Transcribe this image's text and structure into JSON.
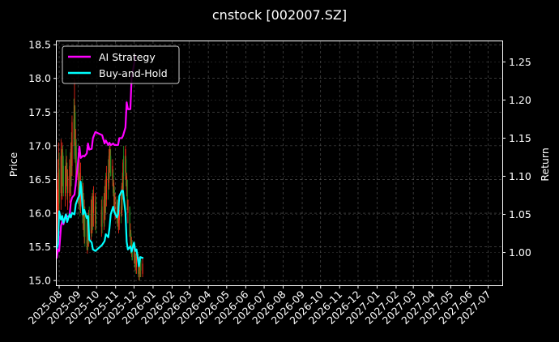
{
  "chart_data": {
    "type": "line",
    "title": "cnstock [002007.SZ]",
    "xlabel": "",
    "ylabel": "Price",
    "y2label": "Return",
    "ylim": [
      14.93,
      18.55
    ],
    "y2lim": [
      0.957,
      1.277
    ],
    "xlim": [
      "2025-07-28",
      "2027-07-24"
    ],
    "yticks": [
      15.0,
      15.5,
      16.0,
      16.5,
      17.0,
      17.5,
      18.0,
      18.5
    ],
    "ytick_labels": [
      "15.0",
      "15.5",
      "16.0",
      "16.5",
      "17.0",
      "17.5",
      "18.0",
      "18.5"
    ],
    "y2ticks": [
      1.0,
      1.05,
      1.1,
      1.15,
      1.2,
      1.25
    ],
    "y2tick_labels": [
      "1.00",
      "1.05",
      "1.10",
      "1.15",
      "1.20",
      "1.25"
    ],
    "xtick_dates": [
      "2025-08-01",
      "2025-09-01",
      "2025-10-01",
      "2025-11-01",
      "2025-12-01",
      "2026-01-01",
      "2026-02-01",
      "2026-03-01",
      "2026-04-01",
      "2026-05-01",
      "2026-06-01",
      "2026-07-01",
      "2026-08-01",
      "2026-09-01",
      "2026-10-01",
      "2026-11-01",
      "2026-12-01",
      "2027-01-01",
      "2027-02-01",
      "2027-03-01",
      "2027-04-01",
      "2027-05-01",
      "2027-06-01",
      "2027-07-01"
    ],
    "xtick_labels": [
      "2025-08",
      "2025-09",
      "2025-10",
      "2025-11",
      "2025-12",
      "2026-01",
      "2026-02",
      "2026-03",
      "2026-04",
      "2026-05",
      "2026-06",
      "2026-07",
      "2026-08",
      "2026-09",
      "2026-10",
      "2026-11",
      "2026-12",
      "2027-01",
      "2027-02",
      "2027-03",
      "2027-04",
      "2027-05",
      "2027-06",
      "2027-07"
    ],
    "grid": true,
    "legend_position": "top-left",
    "candles": {
      "up_color": "#ff2a1a",
      "down_color": "#1f8f1f",
      "x": [
        "2025-07-28",
        "2025-07-29",
        "2025-07-30",
        "2025-07-31",
        "2025-08-01",
        "2025-08-04",
        "2025-08-05",
        "2025-08-06",
        "2025-08-07",
        "2025-08-08",
        "2025-08-11",
        "2025-08-12",
        "2025-08-13",
        "2025-08-14",
        "2025-08-15",
        "2025-08-18",
        "2025-08-19",
        "2025-08-20",
        "2025-08-21",
        "2025-08-22",
        "2025-08-25",
        "2025-08-26",
        "2025-08-27",
        "2025-08-28",
        "2025-08-29",
        "2025-09-01",
        "2025-09-02",
        "2025-09-03",
        "2025-09-04",
        "2025-09-05",
        "2025-09-08",
        "2025-09-09",
        "2025-09-10",
        "2025-09-11",
        "2025-09-12",
        "2025-09-15",
        "2025-09-16",
        "2025-09-17",
        "2025-09-18",
        "2025-09-19",
        "2025-09-22",
        "2025-09-23",
        "2025-09-24",
        "2025-09-25",
        "2025-09-26",
        "2025-09-29",
        "2025-09-30",
        "2025-10-09",
        "2025-10-10",
        "2025-10-13",
        "2025-10-14",
        "2025-10-15",
        "2025-10-16",
        "2025-10-17",
        "2025-10-20",
        "2025-10-21",
        "2025-10-22",
        "2025-10-23",
        "2025-10-24",
        "2025-10-27",
        "2025-10-28",
        "2025-10-29",
        "2025-10-30",
        "2025-10-31",
        "2025-11-03",
        "2025-11-04",
        "2025-11-05",
        "2025-11-06",
        "2025-11-07",
        "2025-11-10",
        "2025-11-11",
        "2025-11-12",
        "2025-11-13",
        "2025-11-14",
        "2025-11-17",
        "2025-11-18",
        "2025-11-19",
        "2025-11-20",
        "2025-11-21",
        "2025-11-24",
        "2025-11-25",
        "2025-11-26",
        "2025-11-27",
        "2025-11-28",
        "2025-12-01",
        "2025-12-02",
        "2025-12-03",
        "2025-12-04",
        "2025-12-05",
        "2025-12-08",
        "2025-12-09",
        "2025-12-10",
        "2025-12-11",
        "2025-12-12",
        "2025-12-15"
      ],
      "low": [
        15.35,
        15.5,
        15.7,
        15.85,
        15.8,
        16.05,
        16.25,
        16.2,
        16.4,
        16.25,
        16.1,
        16.3,
        16.4,
        16.2,
        16.05,
        16.15,
        16.3,
        16.25,
        16.4,
        16.55,
        16.8,
        17.0,
        16.75,
        16.5,
        16.4,
        16.15,
        16.1,
        16.05,
        15.95,
        16.0,
        15.85,
        15.75,
        15.65,
        15.55,
        15.5,
        15.45,
        15.4,
        15.45,
        15.5,
        15.55,
        15.6,
        15.65,
        15.7,
        15.75,
        15.8,
        15.75,
        15.7,
        15.65,
        15.7,
        15.75,
        15.8,
        15.9,
        16.0,
        16.1,
        16.2,
        16.35,
        16.5,
        16.6,
        16.55,
        16.4,
        16.25,
        16.1,
        16.0,
        15.9,
        15.85,
        15.8,
        15.75,
        15.7,
        15.75,
        15.85,
        15.95,
        16.05,
        16.2,
        16.35,
        16.5,
        16.4,
        16.25,
        16.05,
        15.85,
        15.65,
        15.5,
        15.4,
        15.35,
        15.3,
        15.25,
        15.2,
        15.15,
        15.1,
        15.1,
        15.05,
        15.0,
        15.0,
        15.05,
        15.05,
        15.05
      ],
      "high": [
        16.35,
        16.5,
        16.8,
        17.05,
        16.9,
        17.1,
        16.95,
        17.05,
        17.0,
        16.85,
        16.7,
        16.95,
        16.85,
        16.75,
        16.65,
        16.8,
        16.9,
        17.05,
        17.2,
        17.45,
        17.7,
        18.0,
        17.6,
        17.25,
        17.1,
        16.9,
        16.85,
        16.8,
        16.6,
        16.75,
        16.55,
        16.45,
        16.3,
        16.2,
        16.1,
        15.95,
        15.9,
        16.0,
        16.05,
        16.1,
        16.2,
        16.25,
        16.3,
        16.35,
        16.4,
        16.3,
        16.25,
        16.2,
        16.25,
        16.3,
        16.4,
        16.5,
        16.6,
        16.7,
        16.8,
        16.95,
        17.05,
        17.0,
        16.95,
        16.8,
        16.65,
        16.5,
        16.4,
        16.3,
        16.25,
        16.2,
        16.15,
        16.1,
        16.15,
        16.3,
        16.45,
        16.6,
        16.8,
        17.0,
        17.0,
        16.85,
        16.6,
        16.4,
        16.2,
        16.0,
        15.85,
        15.75,
        15.65,
        15.6,
        15.55,
        15.5,
        15.45,
        15.4,
        15.45,
        15.4,
        15.35,
        15.3,
        15.35,
        15.35,
        15.35
      ],
      "open": [
        15.45,
        15.6,
        16.0,
        16.1,
        16.65,
        16.3,
        16.8,
        16.4,
        16.9,
        16.7,
        16.25,
        16.8,
        16.55,
        16.6,
        16.3,
        16.25,
        16.75,
        16.4,
        17.0,
        16.7,
        17.4,
        17.1,
        17.5,
        16.8,
        17.0,
        16.5,
        16.7,
        16.2,
        16.5,
        16.1,
        16.4,
        15.95,
        16.2,
        15.7,
        16.0,
        15.6,
        15.5,
        15.9,
        15.6,
        15.95,
        15.7,
        16.1,
        15.8,
        16.2,
        16.0,
        15.85,
        16.15,
        15.8,
        16.1,
        15.85,
        16.25,
        16.0,
        16.45,
        16.2,
        16.6,
        16.45,
        16.9,
        16.7,
        16.85,
        16.5,
        16.6,
        16.25,
        16.35,
        16.0,
        16.2,
        15.9,
        16.05,
        15.85,
        15.9,
        16.1,
        16.0,
        16.45,
        16.3,
        16.85,
        16.6,
        16.8,
        16.35,
        16.5,
        16.0,
        16.1,
        15.6,
        15.7,
        15.45,
        15.55,
        15.35,
        15.45,
        15.25,
        15.35,
        15.2,
        15.3,
        15.1,
        15.25,
        15.15,
        15.3,
        15.1
      ],
      "close": [
        15.9,
        16.05,
        16.6,
        16.55,
        16.15,
        16.85,
        16.35,
        16.95,
        16.45,
        16.3,
        16.7,
        16.45,
        16.75,
        16.35,
        16.55,
        16.7,
        16.3,
        16.95,
        16.6,
        17.35,
        17.0,
        17.6,
        16.85,
        17.05,
        16.5,
        16.8,
        16.25,
        16.55,
        16.05,
        16.45,
        15.95,
        16.25,
        15.75,
        16.05,
        15.65,
        15.55,
        15.85,
        15.55,
        15.9,
        15.65,
        16.05,
        15.75,
        16.2,
        15.95,
        16.25,
        16.1,
        15.8,
        16.05,
        15.8,
        16.2,
        15.95,
        16.4,
        16.15,
        16.55,
        16.4,
        16.85,
        16.65,
        16.95,
        16.55,
        16.7,
        16.3,
        16.45,
        16.05,
        16.25,
        15.95,
        16.1,
        15.8,
        16.0,
        16.05,
        15.95,
        16.4,
        16.25,
        16.75,
        16.55,
        16.95,
        16.4,
        16.55,
        16.05,
        16.2,
        15.65,
        15.75,
        15.4,
        15.5,
        15.3,
        15.5,
        15.25,
        15.4,
        15.2,
        15.35,
        15.1,
        15.25,
        15.1,
        15.3,
        15.15,
        15.25
      ]
    },
    "series": [
      {
        "name": "AI Strategy",
        "color": "#ff00ff",
        "x": [
          "2025-07-28",
          "2025-07-30",
          "2025-08-01",
          "2025-08-04",
          "2025-08-06",
          "2025-08-08",
          "2025-08-12",
          "2025-08-14",
          "2025-08-18",
          "2025-08-20",
          "2025-08-22",
          "2025-08-26",
          "2025-08-28",
          "2025-09-01",
          "2025-09-03",
          "2025-09-05",
          "2025-09-09",
          "2025-09-11",
          "2025-09-15",
          "2025-09-17",
          "2025-09-19",
          "2025-09-23",
          "2025-09-25",
          "2025-09-29",
          "2025-10-10",
          "2025-10-14",
          "2025-10-16",
          "2025-10-20",
          "2025-10-22",
          "2025-10-24",
          "2025-10-28",
          "2025-10-30",
          "2025-11-03",
          "2025-11-05",
          "2025-11-07",
          "2025-11-11",
          "2025-11-13",
          "2025-11-17",
          "2025-11-19",
          "2025-11-21",
          "2025-11-25",
          "2025-11-27",
          "2025-12-01",
          "2025-12-03"
        ],
        "values": [
          0.993,
          1.004,
          1.002,
          1.035,
          1.041,
          1.037,
          1.05,
          1.047,
          1.048,
          1.066,
          1.072,
          1.076,
          1.09,
          1.12,
          1.139,
          1.124,
          1.127,
          1.126,
          1.13,
          1.143,
          1.135,
          1.136,
          1.15,
          1.158,
          1.154,
          1.143,
          1.147,
          1.141,
          1.144,
          1.141,
          1.143,
          1.141,
          1.141,
          1.141,
          1.15,
          1.15,
          1.153,
          1.164,
          1.197,
          1.188,
          1.188,
          1.228,
          1.247,
          1.258
        ]
      },
      {
        "name": "Buy-and-Hold",
        "color": "#00ffff",
        "x": [
          "2025-07-28",
          "2025-07-30",
          "2025-08-01",
          "2025-08-04",
          "2025-08-06",
          "2025-08-08",
          "2025-08-12",
          "2025-08-14",
          "2025-08-18",
          "2025-08-20",
          "2025-08-22",
          "2025-08-26",
          "2025-08-28",
          "2025-09-01",
          "2025-09-03",
          "2025-09-05",
          "2025-09-09",
          "2025-09-11",
          "2025-09-15",
          "2025-09-17",
          "2025-09-19",
          "2025-09-23",
          "2025-09-25",
          "2025-09-29",
          "2025-10-10",
          "2025-10-14",
          "2025-10-16",
          "2025-10-20",
          "2025-10-22",
          "2025-10-24",
          "2025-10-28",
          "2025-10-30",
          "2025-11-03",
          "2025-11-05",
          "2025-11-07",
          "2025-11-11",
          "2025-11-13",
          "2025-11-17",
          "2025-11-19",
          "2025-11-21",
          "2025-11-25",
          "2025-11-27",
          "2025-12-01",
          "2025-12-03",
          "2025-12-05",
          "2025-12-09",
          "2025-12-11",
          "2025-12-15"
        ],
        "values": [
          1.005,
          1.011,
          1.054,
          1.043,
          1.048,
          1.039,
          1.05,
          1.04,
          1.05,
          1.046,
          1.052,
          1.05,
          1.063,
          1.072,
          1.075,
          1.093,
          1.05,
          1.056,
          1.045,
          1.048,
          1.017,
          1.013,
          1.004,
          1.002,
          1.01,
          1.015,
          1.024,
          1.02,
          1.032,
          1.05,
          1.06,
          1.053,
          1.046,
          1.05,
          1.074,
          1.081,
          1.081,
          1.052,
          1.014,
          1.004,
          1.008,
          1.001,
          1.013,
          1.002,
          1.004,
          0.982,
          0.994,
          0.993
        ]
      }
    ]
  }
}
